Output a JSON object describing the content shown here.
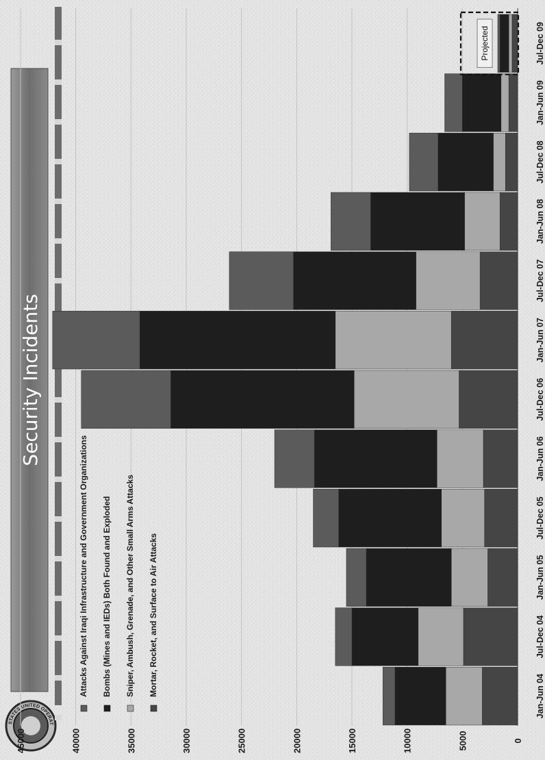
{
  "header": {
    "title": "Security Incidents",
    "seal_text": "STATES UNITED OPERATIONS IRAQ"
  },
  "chart_data": {
    "type": "bar",
    "stacked": true,
    "orientation": "vertical (rotated 90° on page)",
    "title": "Security Incidents",
    "categories": [
      "Jan-Jun 04",
      "Jul-Dec 04",
      "Jan-Jun 05",
      "Jul-Dec 05",
      "Jan-Jun 06",
      "Jul-Dec 06",
      "Jan-Jun 07",
      "Jul-Dec 07",
      "Jan-Jun 08",
      "Jul-Dec 08",
      "Jan-Jun 09",
      "Jul-Dec 09"
    ],
    "series": [
      {
        "name": "Mortar, Rocket, and Surface to Air Attacks",
        "color": "#454545",
        "values": [
          3200,
          4900,
          2700,
          3000,
          3100,
          5300,
          6000,
          3400,
          1600,
          1100,
          800,
          500
        ]
      },
      {
        "name": "Sniper, Ambush, Grenade, and Other Small Arms Attacks",
        "color": "#a8a8a8",
        "values": [
          3300,
          4100,
          3300,
          3900,
          4200,
          9500,
          10500,
          5800,
          3200,
          1100,
          700,
          300
        ]
      },
      {
        "name": "Bombs (Mines and IEDs) Both Found and Exploded",
        "color": "#1e1e1e",
        "values": [
          4600,
          6000,
          7700,
          9300,
          11100,
          16600,
          17700,
          11100,
          8500,
          5000,
          3500,
          800
        ]
      },
      {
        "name": "Attacks Against Iraqi Infrastructure and Government Organizations",
        "color": "#5b5b5b",
        "values": [
          1100,
          1500,
          1800,
          2300,
          3600,
          8100,
          7900,
          5800,
          3600,
          2600,
          1600,
          200
        ]
      }
    ],
    "ylim": [
      0,
      45000
    ],
    "yticks": [
      "0",
      "5000",
      "10000",
      "15000",
      "20000",
      "25000",
      "30000",
      "35000",
      "40000",
      "45000"
    ],
    "grid": true,
    "legend": "top-left",
    "annotations": [
      {
        "text": "Projected",
        "category": "Jul-Dec 09"
      }
    ]
  }
}
